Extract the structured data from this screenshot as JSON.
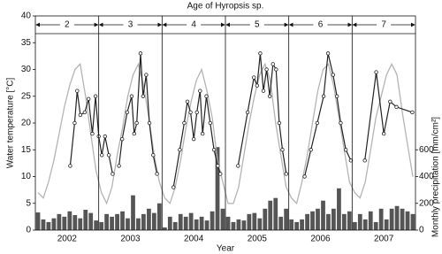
{
  "chart_data": {
    "type": "line",
    "title": "Age of Hyropsis sp.",
    "x_label": "Year",
    "y_label": "Water temperature [°C]",
    "y2_label": "Monthly precipitation [mm/cm²]",
    "categories": [
      "2002",
      "2003",
      "2004",
      "2005",
      "2006",
      "2007"
    ],
    "xlim": [
      2002,
      2008
    ],
    "ylim": [
      0,
      40
    ],
    "yticks": [
      0,
      5,
      10,
      15,
      20,
      25,
      30,
      35,
      40
    ],
    "y2lim": [
      0,
      1600
    ],
    "y2ticks": [
      0,
      200,
      400,
      600
    ],
    "ages": [
      {
        "label": "2",
        "start": 2002,
        "end": 2003
      },
      {
        "label": "3",
        "start": 2003,
        "end": 2004
      },
      {
        "label": "4",
        "start": 2004,
        "end": 2005
      },
      {
        "label": "5",
        "start": 2005,
        "end": 2006
      },
      {
        "label": "6",
        "start": 2006,
        "end": 2007
      },
      {
        "label": "7",
        "start": 2007,
        "end": 2008
      }
    ],
    "x": [
      2002.042,
      2002.125,
      2002.208,
      2002.292,
      2002.375,
      2002.458,
      2002.542,
      2002.625,
      2002.708,
      2002.792,
      2002.875,
      2002.958,
      2003.042,
      2003.125,
      2003.208,
      2003.292,
      2003.375,
      2003.458,
      2003.542,
      2003.625,
      2003.708,
      2003.792,
      2003.875,
      2003.958,
      2004.042,
      2004.125,
      2004.208,
      2004.292,
      2004.375,
      2004.458,
      2004.542,
      2004.625,
      2004.708,
      2004.792,
      2004.875,
      2004.958,
      2005.042,
      2005.125,
      2005.208,
      2005.292,
      2005.375,
      2005.458,
      2005.542,
      2005.625,
      2005.708,
      2005.792,
      2005.875,
      2005.958,
      2006.042,
      2006.125,
      2006.208,
      2006.292,
      2006.375,
      2006.458,
      2006.542,
      2006.625,
      2006.708,
      2006.792,
      2006.875,
      2006.958,
      2007.042,
      2007.125,
      2007.208,
      2007.292,
      2007.375,
      2007.458,
      2007.542,
      2007.625,
      2007.708,
      2007.792,
      2007.875,
      2007.958
    ],
    "series": [
      {
        "type": "line",
        "color": "#b4b4b4",
        "values": [
          7,
          6,
          9,
          13,
          18,
          23,
          27,
          30,
          31,
          25,
          18,
          11,
          7,
          5,
          8,
          14,
          19,
          25,
          29,
          31,
          27,
          21,
          14,
          9,
          6,
          5,
          8,
          13,
          19,
          24,
          28,
          30,
          26,
          21,
          13,
          9,
          5,
          5,
          8,
          14,
          20,
          25,
          29,
          31,
          28,
          20,
          14,
          8,
          6,
          5,
          9,
          14,
          20,
          26,
          30,
          31,
          27,
          21,
          15,
          9,
          7,
          6,
          9,
          15,
          21,
          25,
          29,
          31,
          29,
          22,
          16,
          10
        ]
      },
      {
        "type": "line",
        "color": "#222222",
        "markers": true,
        "x": [
          2002.55,
          2002.62,
          2002.66,
          2002.71,
          2002.78,
          2002.84,
          2002.9,
          2002.95,
          2003.0,
          2003.05,
          2003.1,
          2003.16,
          2003.22,
          null,
          2003.32,
          2003.37,
          2003.45,
          2003.52,
          2003.56,
          2003.6,
          2003.66,
          2003.7,
          2003.75,
          2003.8,
          2003.86,
          2003.92,
          null,
          2004.18,
          2004.28,
          2004.35,
          2004.4,
          2004.45,
          2004.5,
          2004.55,
          2004.6,
          2004.64,
          2004.7,
          2004.76,
          2004.82,
          2004.88,
          2004.92,
          null,
          2005.2,
          2005.35,
          2005.45,
          2005.5,
          2005.55,
          2005.6,
          2005.65,
          2005.7,
          2005.75,
          2005.8,
          2005.85,
          2005.9,
          2005.96,
          null,
          2006.25,
          2006.35,
          2006.45,
          2006.55,
          2006.62,
          2006.7,
          2006.76,
          2006.82,
          2006.9,
          2006.98,
          null,
          2007.2,
          2007.38,
          2007.5,
          2007.6,
          2007.7,
          2007.95
        ],
        "values": [
          12,
          20,
          26,
          21.5,
          22,
          24.5,
          18,
          25,
          17.5,
          14,
          17.5,
          14,
          10.5,
          null,
          12,
          17,
          22,
          25,
          18,
          20,
          33,
          25,
          29,
          20,
          14,
          10.5,
          null,
          8,
          15,
          20,
          24,
          22,
          17,
          22,
          26,
          18,
          25,
          20,
          15,
          12,
          10.5,
          null,
          12,
          22,
          28.5,
          27,
          33,
          26,
          30,
          25,
          31,
          30,
          20,
          15,
          10.5,
          null,
          10,
          15,
          20,
          25,
          33,
          29,
          25,
          20,
          15,
          13,
          null,
          13,
          29.5,
          18,
          24,
          23,
          22
        ]
      },
      {
        "type": "bar",
        "axis": "y2",
        "color": "#555555",
        "values": [
          132,
          80,
          60,
          88,
          120,
          100,
          140,
          112,
          88,
          152,
          128,
          72,
          60,
          120,
          100,
          120,
          140,
          88,
          260,
          88,
          120,
          160,
          128,
          200,
          20,
          100,
          60,
          120,
          100,
          128,
          80,
          100,
          72,
          140,
          620,
          160,
          100,
          60,
          80,
          72,
          120,
          128,
          88,
          160,
          220,
          240,
          100,
          160,
          80,
          60,
          80,
          120,
          140,
          160,
          220,
          120,
          160,
          312,
          120,
          140,
          60,
          120,
          80,
          140,
          60,
          160,
          80,
          160,
          180,
          160,
          140,
          120
        ]
      }
    ]
  }
}
